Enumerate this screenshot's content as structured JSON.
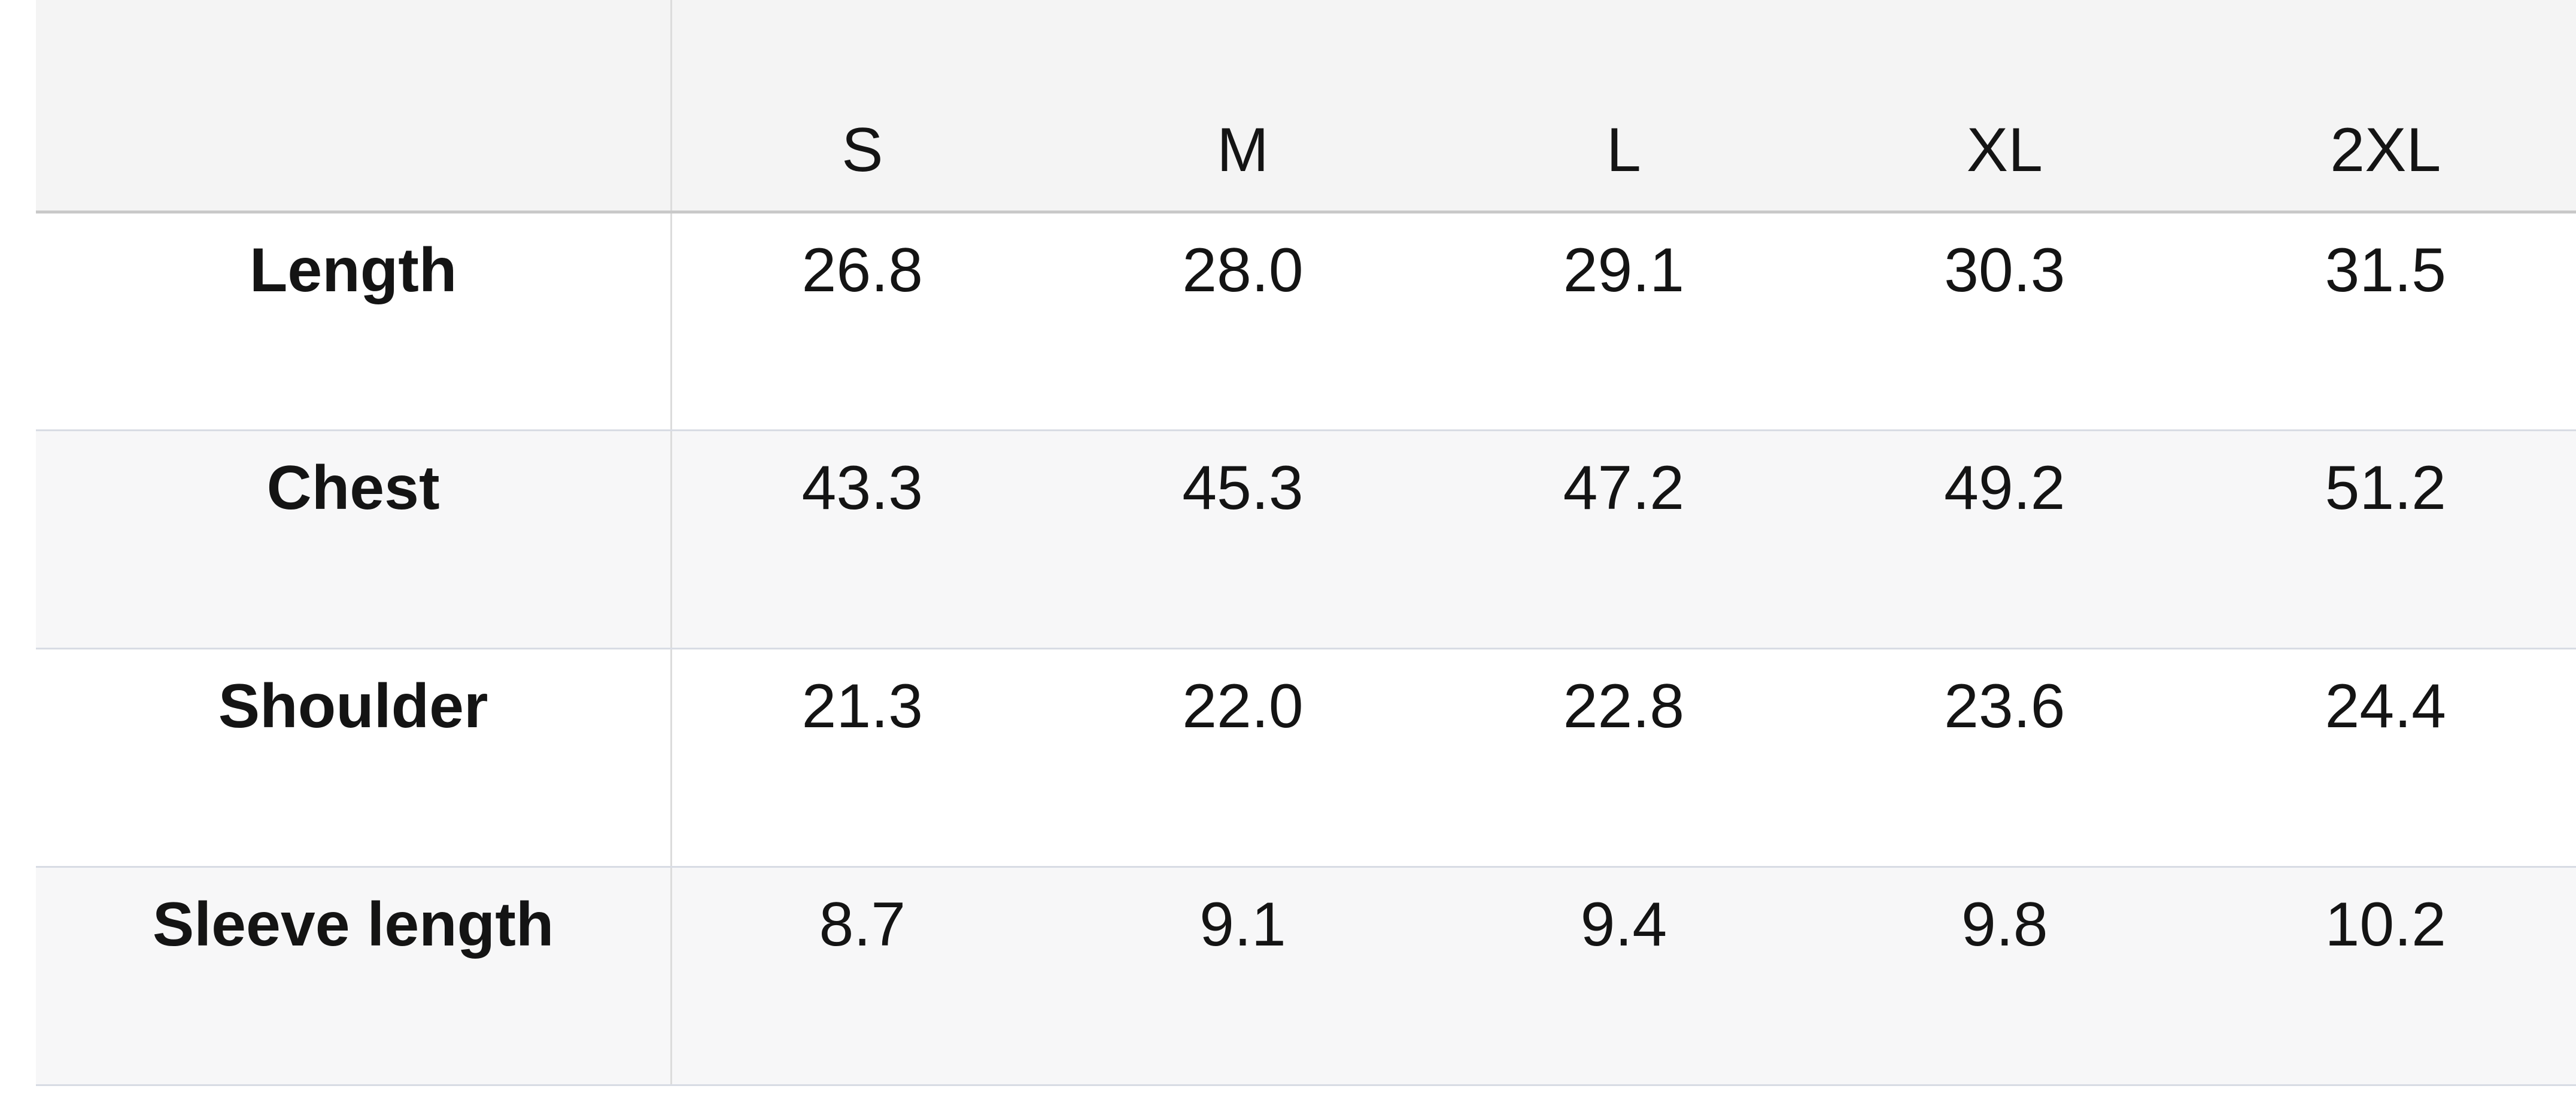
{
  "table": {
    "sizes": [
      "S",
      "M",
      "L",
      "XL",
      "2XL"
    ],
    "rows": [
      {
        "label": "Length",
        "values": [
          "26.8",
          "28.0",
          "29.1",
          "30.3",
          "31.5"
        ]
      },
      {
        "label": "Chest",
        "values": [
          "43.3",
          "45.3",
          "47.2",
          "49.2",
          "51.2"
        ]
      },
      {
        "label": "Shoulder",
        "values": [
          "21.3",
          "22.0",
          "22.8",
          "23.6",
          "24.4"
        ]
      },
      {
        "label": "Sleeve length",
        "values": [
          "8.7",
          "9.1",
          "9.4",
          "9.8",
          "10.2"
        ]
      }
    ]
  }
}
